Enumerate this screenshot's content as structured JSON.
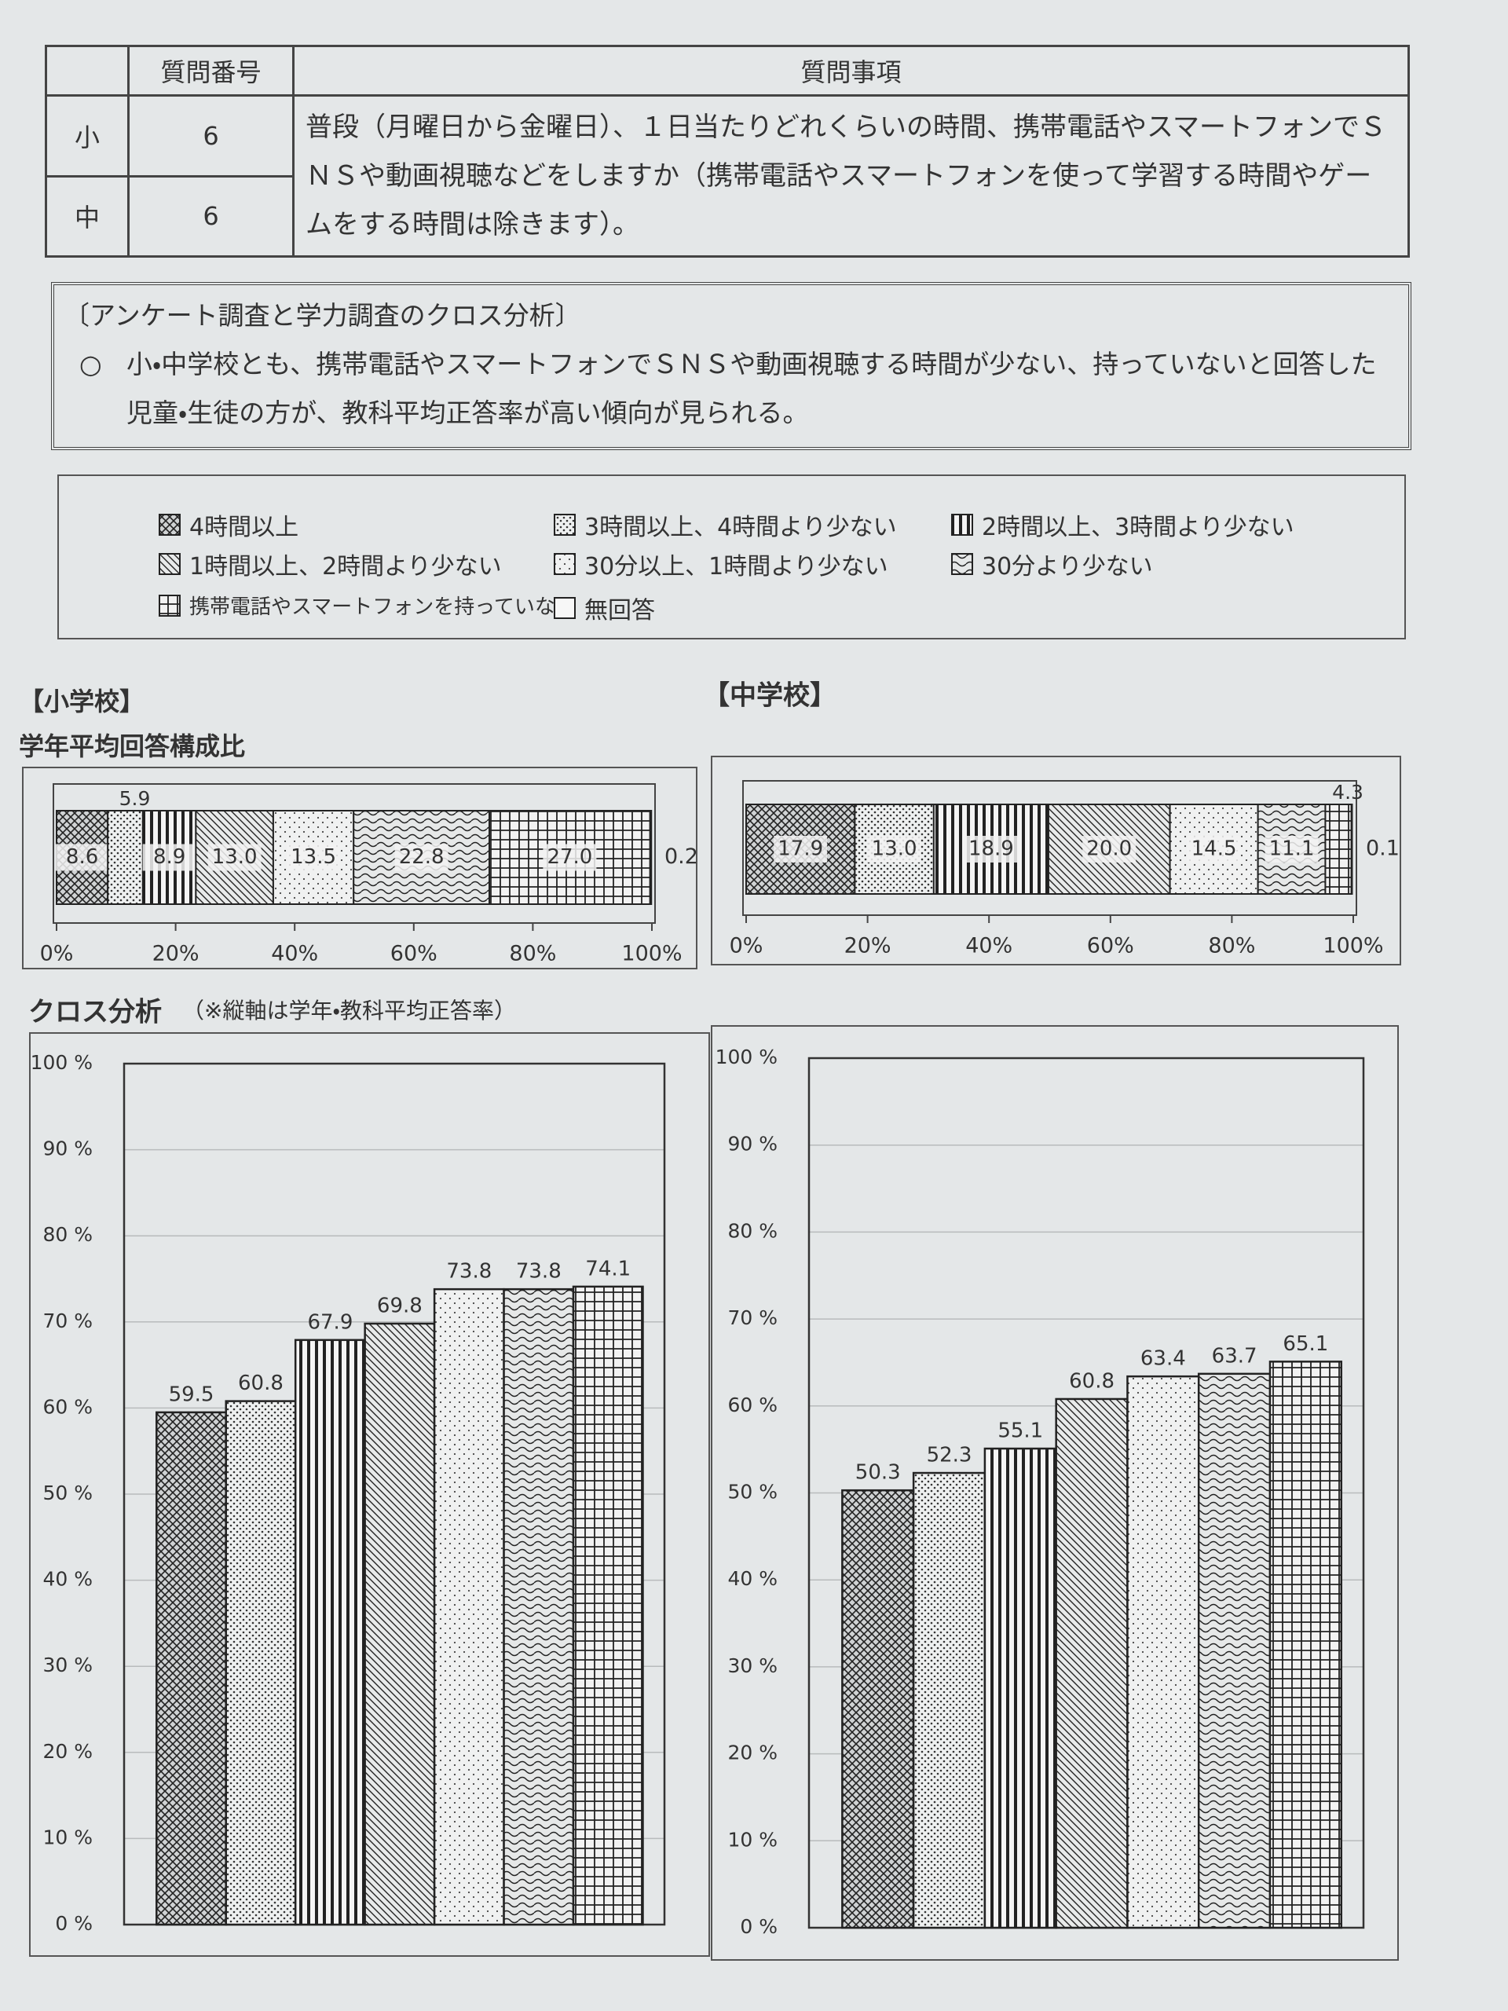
{
  "table": {
    "headers": [
      "質問番号",
      "質問事項"
    ],
    "rows": [
      [
        "小",
        "6"
      ],
      [
        "中",
        "6"
      ]
    ],
    "question": "普段（月曜日から金曜日）、１日当たりどれくらいの時間、携帯電話やスマートフォンでＳＮＳや動画視聴などをしますか（携帯電話やスマートフォンを使って学習する時間やゲームをする時間は除きます）。"
  },
  "note": {
    "title": "〔アンケート調査と学力調査のクロス分析〕",
    "bullet": "○",
    "text": "小・中学校とも、携帯電話やスマートフォンでＳＮＳや動画視聴する時間が少ない、持っていないと回答した児童・生徒の方が、教科平均正答率が高い傾向が見られる。"
  },
  "legend": {
    "items": [
      "4時間以上",
      "3時間以上、4時間より少ない",
      "2時間以上、3時間より少ない",
      "1時間以上、2時間より少ない",
      "30分以上、1時間より少ない",
      "30分より少ない",
      "携帯電話やスマートフォンを持っていない",
      "無回答"
    ]
  },
  "chart_data": [
    {
      "type": "stacked_bar",
      "title": "【小学校】",
      "subtitle": "学年平均回答構成比",
      "values": [
        8.6,
        5.9,
        8.9,
        13.0,
        13.5,
        22.8,
        27.0,
        0.2
      ],
      "value_labels": [
        "8.6",
        "5.9",
        "8.9",
        "13.0",
        "13.5",
        "22.8",
        "27.0",
        "0.2"
      ],
      "xlim": [
        0,
        100
      ],
      "xticks": [
        {
          "value": 0,
          "label": "0%"
        },
        {
          "value": 20,
          "label": "20%"
        },
        {
          "value": 40,
          "label": "40%"
        },
        {
          "value": 60,
          "label": "60%"
        },
        {
          "value": 80,
          "label": "80%"
        },
        {
          "value": 100,
          "label": "100%"
        }
      ]
    },
    {
      "type": "stacked_bar",
      "title": "【中学校】",
      "values": [
        17.9,
        13.0,
        18.9,
        20.0,
        14.5,
        11.1,
        4.3,
        0.1
      ],
      "value_labels": [
        "17.9",
        "13.0",
        "18.9",
        "20.0",
        "14.5",
        "11.1",
        "4.3",
        "0.1"
      ],
      "xlim": [
        0,
        100
      ],
      "xticks": [
        {
          "value": 0,
          "label": "0%"
        },
        {
          "value": 20,
          "label": "20%"
        },
        {
          "value": 40,
          "label": "40%"
        },
        {
          "value": 60,
          "label": "60%"
        },
        {
          "value": 80,
          "label": "80%"
        },
        {
          "value": 100,
          "label": "100%"
        }
      ]
    },
    {
      "type": "bar",
      "title": "クロス分析",
      "subtitle": "（※縦軸は学年・教科平均正答率）",
      "values": [
        59.5,
        60.8,
        67.9,
        69.8,
        73.8,
        73.8,
        74.1
      ],
      "ylim": [
        0,
        100
      ],
      "yticks": [
        {
          "value": 0,
          "label": "0 %"
        },
        {
          "value": 10,
          "label": "10 %"
        },
        {
          "value": 20,
          "label": "20 %"
        },
        {
          "value": 30,
          "label": "30 %"
        },
        {
          "value": 40,
          "label": "40 %"
        },
        {
          "value": 50,
          "label": "50 %"
        },
        {
          "value": 60,
          "label": "60 %"
        },
        {
          "value": 70,
          "label": "70 %"
        },
        {
          "value": 80,
          "label": "80 %"
        },
        {
          "value": 90,
          "label": "90 %"
        },
        {
          "value": 100,
          "label": "100 %"
        }
      ],
      "grid": true
    },
    {
      "type": "bar",
      "values": [
        50.3,
        52.3,
        55.1,
        60.8,
        63.4,
        63.7,
        65.1
      ],
      "ylim": [
        0,
        100
      ],
      "yticks": [
        {
          "value": 0,
          "label": "0 %"
        },
        {
          "value": 10,
          "label": "10 %"
        },
        {
          "value": 20,
          "label": "20 %"
        },
        {
          "value": 30,
          "label": "30 %"
        },
        {
          "value": 40,
          "label": "40 %"
        },
        {
          "value": 50,
          "label": "50 %"
        },
        {
          "value": 60,
          "label": "60 %"
        },
        {
          "value": 70,
          "label": "70 %"
        },
        {
          "value": 80,
          "label": "80 %"
        },
        {
          "value": 90,
          "label": "90 %"
        },
        {
          "value": 100,
          "label": "100 %"
        }
      ],
      "grid": true
    }
  ]
}
